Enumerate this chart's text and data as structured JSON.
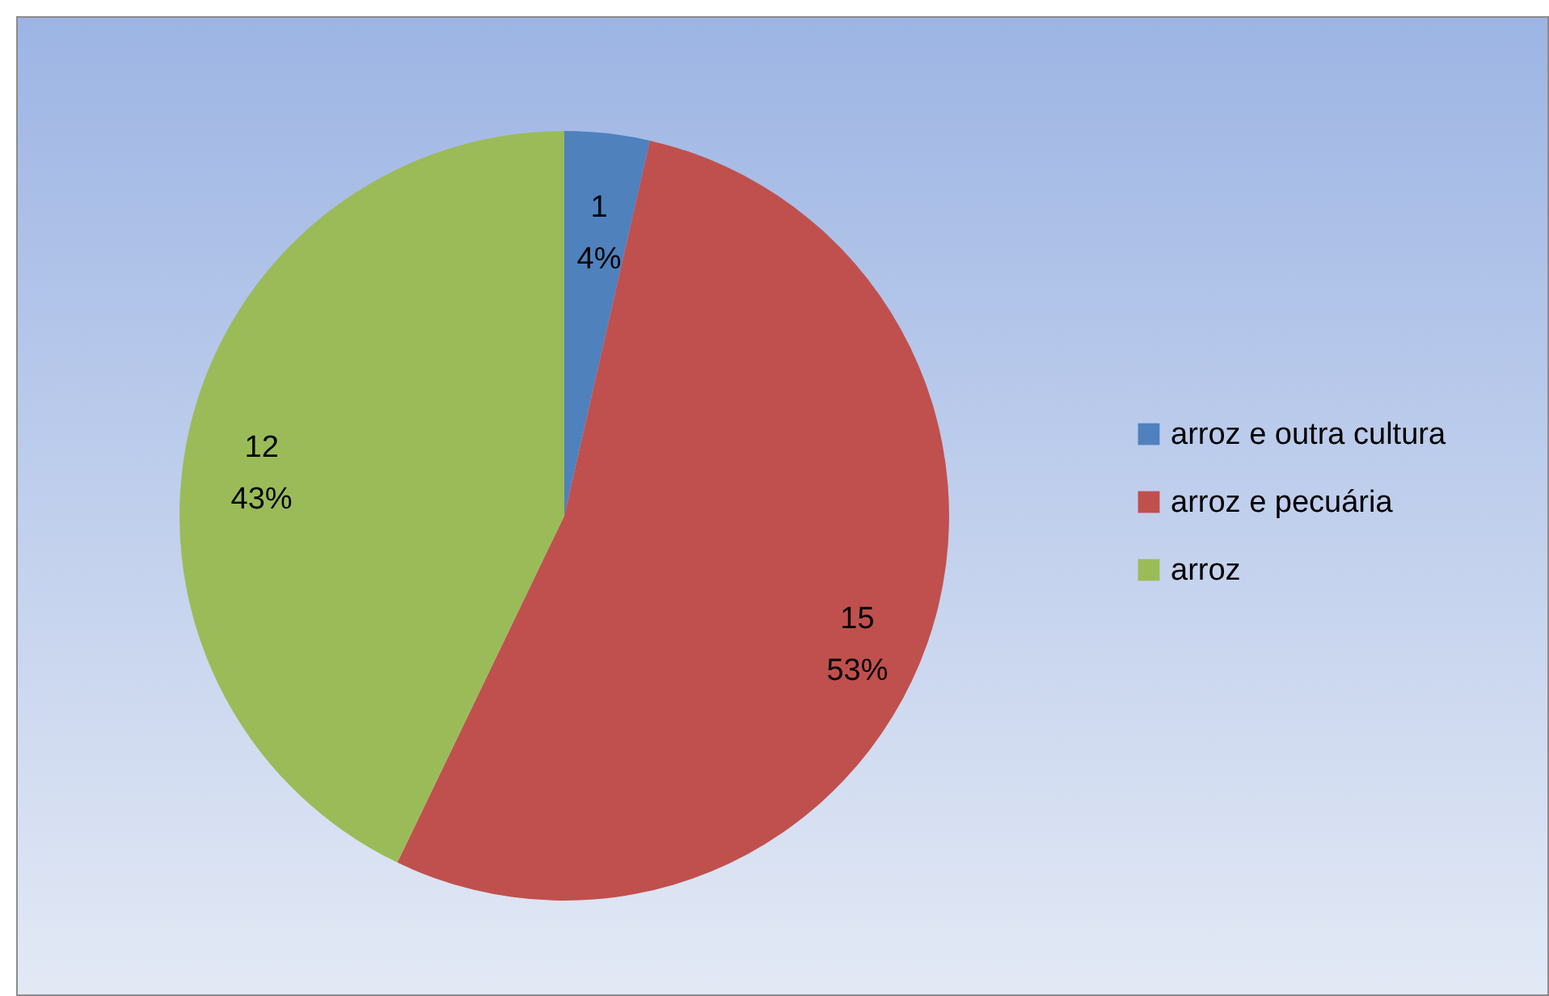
{
  "chart_data": {
    "type": "pie",
    "categories": [
      "arroz e outra cultura",
      "arroz e pecuária",
      "arroz"
    ],
    "values": [
      1,
      15,
      12
    ],
    "colors": [
      "#4f81bd",
      "#c0504d",
      "#9bbb59"
    ],
    "value_labels": [
      "1\n4%",
      "15\n53%",
      "12\n43%"
    ],
    "legend": "right"
  }
}
